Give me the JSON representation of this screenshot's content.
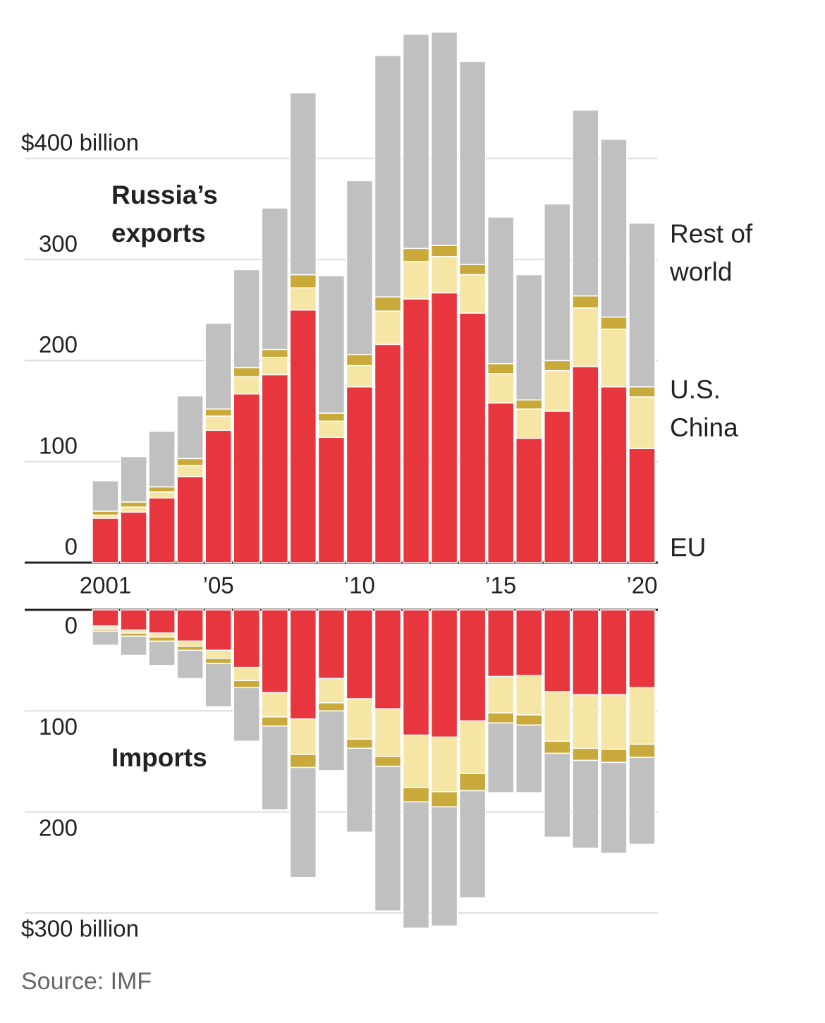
{
  "chart_data": [
    {
      "type": "bar",
      "stacked": true,
      "title": "Russia’s exports",
      "categories": [
        "2001",
        null,
        null,
        null,
        "’05",
        null,
        null,
        null,
        null,
        "’10",
        null,
        null,
        null,
        null,
        "’15",
        null,
        null,
        null,
        null,
        "’20"
      ],
      "series": [
        {
          "name": "EU",
          "color": "#e8363f",
          "values": [
            44,
            50,
            64,
            85,
            131,
            167,
            186,
            250,
            124,
            174,
            216,
            261,
            267,
            247,
            158,
            123,
            150,
            194,
            174,
            113
          ]
        },
        {
          "name": "China",
          "color": "#f5e6a6",
          "values": [
            3,
            5,
            6,
            11,
            14,
            17,
            17,
            22,
            16,
            21,
            33,
            37,
            36,
            38,
            29,
            29,
            40,
            58,
            57,
            51
          ]
        },
        {
          "name": "U.S.",
          "color": "#c9a93a",
          "values": [
            4,
            5,
            5,
            7,
            7,
            9,
            8,
            13,
            8,
            11,
            14,
            13,
            11,
            10,
            10,
            9,
            10,
            12,
            12,
            10
          ]
        },
        {
          "name": "Rest of world",
          "color": "#c0c0c0",
          "values": [
            30,
            45,
            55,
            62,
            85,
            97,
            140,
            180,
            136,
            172,
            239,
            212,
            211,
            201,
            145,
            124,
            155,
            184,
            176,
            162
          ]
        }
      ],
      "ylim": [
        0,
        530
      ],
      "yticks": [
        0,
        100,
        200,
        300,
        {
          "value": 400,
          "label": "$400 billion"
        }
      ],
      "grid": true
    },
    {
      "type": "bar",
      "stacked": true,
      "inverted": true,
      "title": "Imports",
      "series": [
        {
          "color": "#e8363f",
          "values": [
            16,
            20,
            23,
            31,
            40,
            57,
            82,
            108,
            68,
            88,
            98,
            124,
            126,
            110,
            66,
            65,
            81,
            84,
            84,
            77
          ]
        },
        {
          "color": "#f5e6a6",
          "values": [
            3,
            3,
            4,
            5,
            8,
            13,
            24,
            35,
            24,
            40,
            47,
            52,
            54,
            52,
            36,
            39,
            49,
            53,
            54,
            56
          ]
        },
        {
          "color": "#c9a93a",
          "values": [
            2,
            3,
            4,
            4,
            5,
            7,
            9,
            13,
            8,
            9,
            10,
            14,
            15,
            17,
            10,
            10,
            12,
            12,
            13,
            13
          ]
        },
        {
          "color": "#c0c0c0",
          "values": [
            14,
            19,
            24,
            28,
            43,
            53,
            83,
            109,
            59,
            83,
            143,
            125,
            118,
            106,
            69,
            67,
            83,
            87,
            90,
            86
          ]
        }
      ],
      "ylim": [
        0,
        330
      ],
      "yticks": [
        0,
        100,
        200,
        {
          "value": 300,
          "label": "$300 billion"
        }
      ],
      "grid": true
    }
  ],
  "source": "Source: IMF"
}
